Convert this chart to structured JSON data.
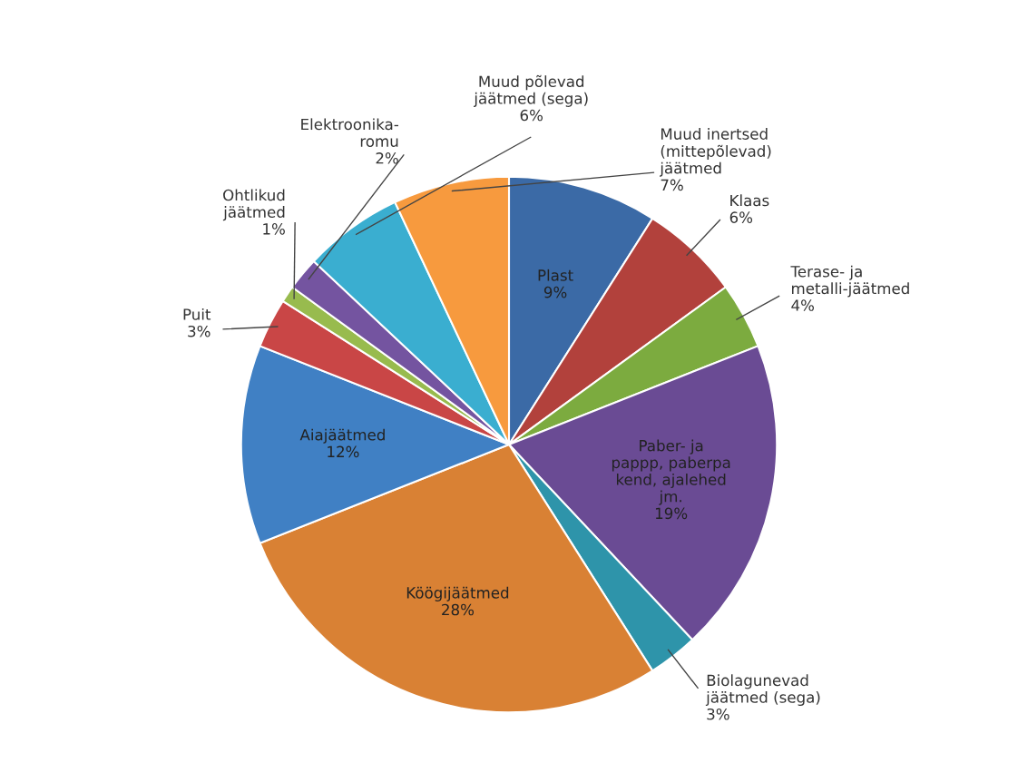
{
  "chart_data": {
    "type": "pie",
    "categories": [
      "Plast",
      "Klaas",
      "Terase- ja\nmetalli-jäätmed",
      "Paber- ja\npappp, paberpa\nkend, ajalehed\njm.",
      "Biolagunevad\njäätmed (sega)",
      "Köögijäätmed",
      "Aiajäätmed",
      "Puit",
      "Ohtlikud\njäätmed",
      "Elektroonika-\nromu",
      "Muud põlevad\njäätmed (sega)",
      "Muud inertsed\n(mittepõlevad)\njäätmed"
    ],
    "values": [
      9,
      6,
      4,
      19,
      3,
      28,
      12,
      3,
      1,
      2,
      6,
      7
    ],
    "value_labels": [
      "9%",
      "6%",
      "4%",
      "19%",
      "3%",
      "28%",
      "12%",
      "3%",
      "1%",
      "2%",
      "6%",
      "7%"
    ],
    "colors": [
      "#3b6aa6",
      "#b2413c",
      "#7cab3f",
      "#6a4b94",
      "#2e94aa",
      "#d98134",
      "#4080c4",
      "#c94646",
      "#98bb4e",
      "#7454a0",
      "#3aaed0",
      "#f79a3e"
    ]
  }
}
